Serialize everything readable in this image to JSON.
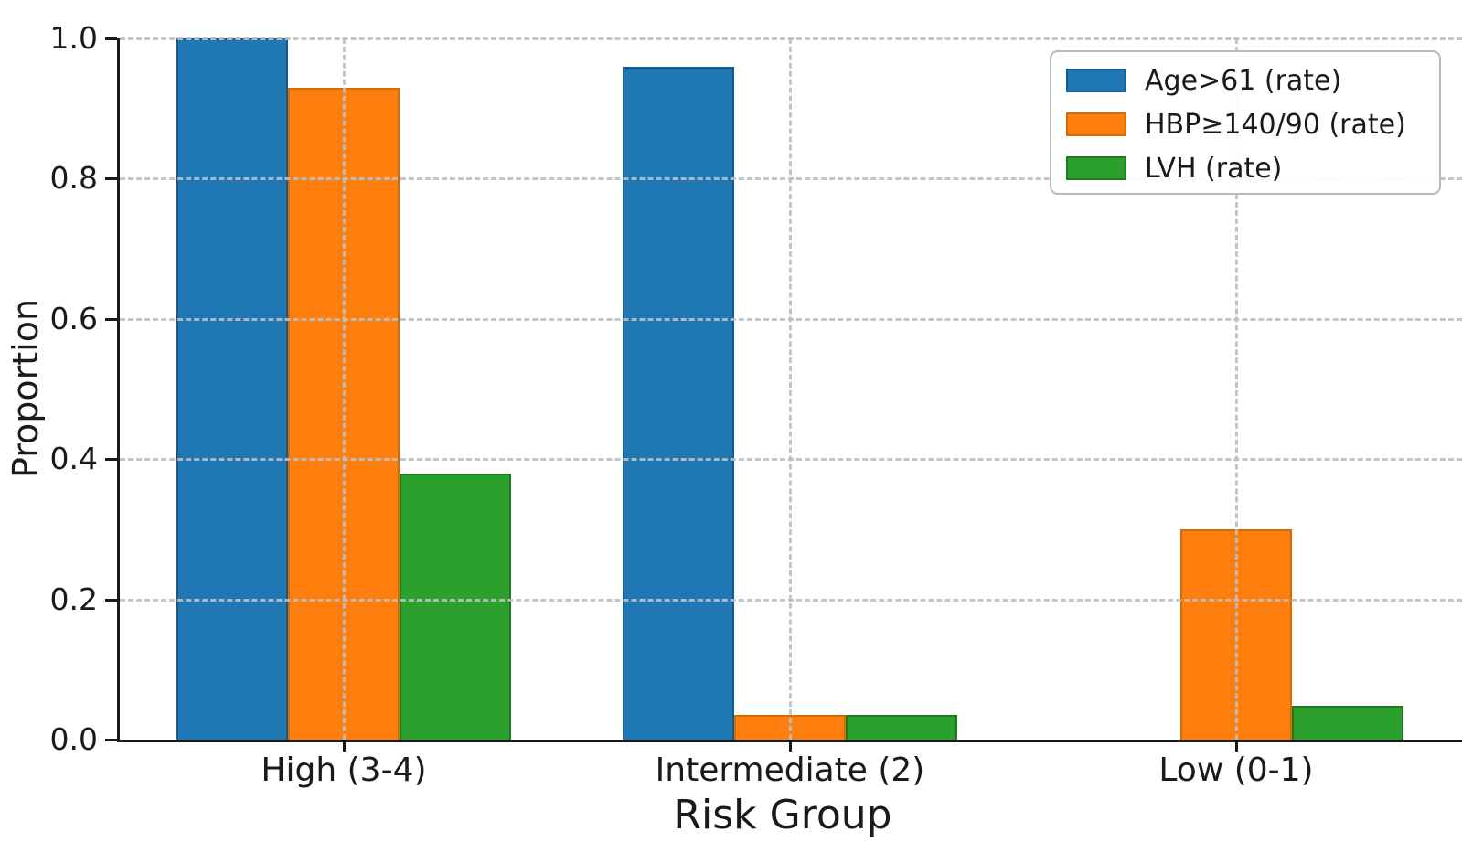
{
  "chart_data": {
    "type": "bar",
    "title": "",
    "xlabel": "Risk Group",
    "ylabel": "Proportion",
    "categories": [
      "High (3-4)",
      "Intermediate (2)",
      "Low (0-1)"
    ],
    "series": [
      {
        "name": "Age>61 (rate)",
        "color": "#1f77b4",
        "edge_color": "#15598c",
        "values": [
          1.0,
          0.96,
          0.0
        ]
      },
      {
        "name": "HBP≥140/90 (rate)",
        "color": "#ff7f0e",
        "edge_color": "#d96a00",
        "values": [
          0.93,
          0.035,
          0.3
        ]
      },
      {
        "name": "LVH (rate)",
        "color": "#2ca02c",
        "edge_color": "#1f7a1f",
        "values": [
          0.38,
          0.035,
          0.048
        ]
      }
    ],
    "ylim": [
      0,
      1.0
    ],
    "yticks": [
      0.0,
      0.2,
      0.4,
      0.6,
      0.8,
      1.0
    ],
    "ytick_labels": [
      "0.0",
      "0.2",
      "0.4",
      "0.6",
      "0.8",
      "1.0"
    ],
    "grid": "dashed gridlines on both axes, drawn over bars",
    "legend_position": "upper right"
  }
}
